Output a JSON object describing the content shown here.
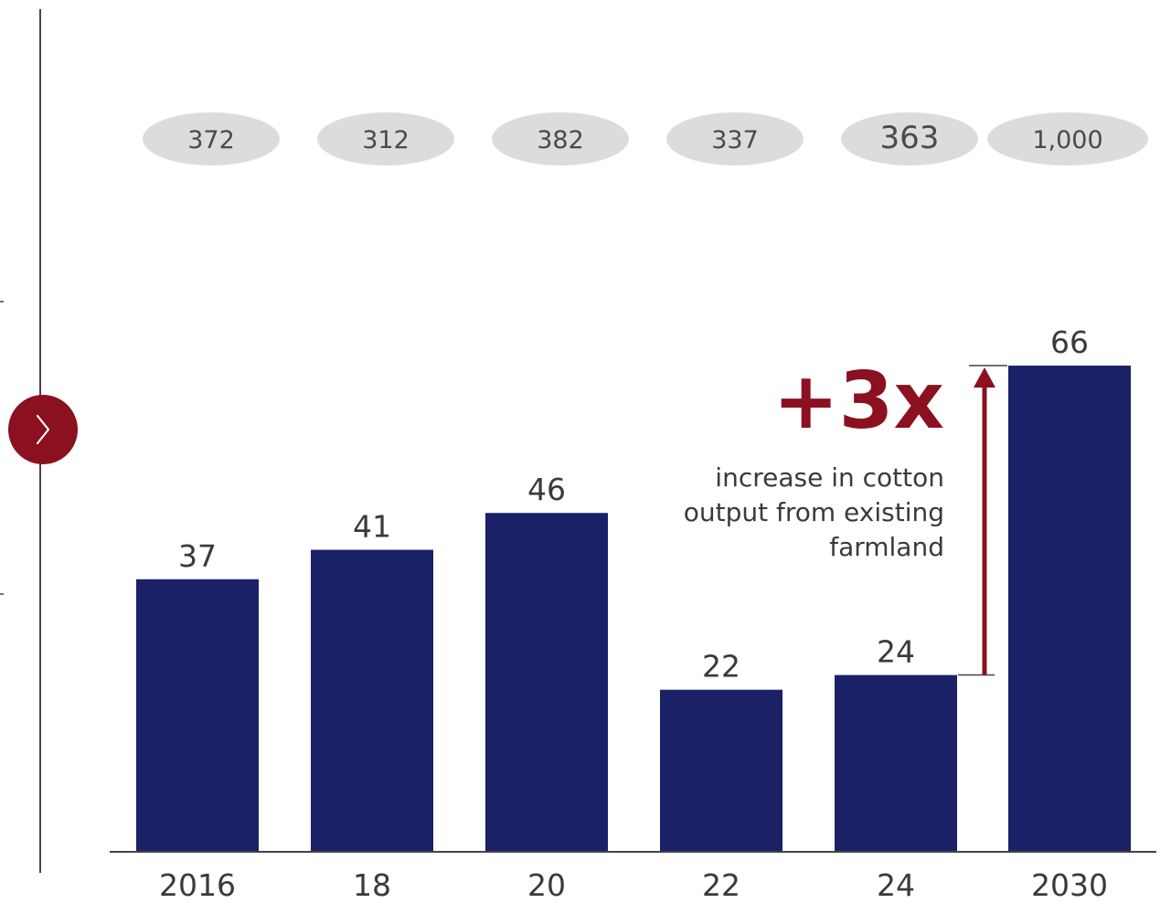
{
  "chart_data": {
    "type": "bar",
    "categories": [
      "2016",
      "18",
      "20",
      "22",
      "24",
      "2030"
    ],
    "values": [
      37,
      41,
      46,
      22,
      24,
      66
    ],
    "top_values": [
      "372",
      "312",
      "382",
      "337",
      "363",
      "1,000"
    ],
    "ylim": [
      0,
      82
    ],
    "grid": false,
    "legend": "none",
    "annotation": {
      "multiplier": "+3x",
      "text_lines": [
        "increase in cotton",
        "output from existing",
        "farmland"
      ],
      "from_category": "24",
      "to_category": "2030"
    }
  },
  "colors": {
    "bar": "#1a2167",
    "accent": "#8b1020",
    "pill": "#dcdcdc",
    "axis": "#444444"
  },
  "nav": {
    "next_icon": "chevron-right-icon"
  }
}
